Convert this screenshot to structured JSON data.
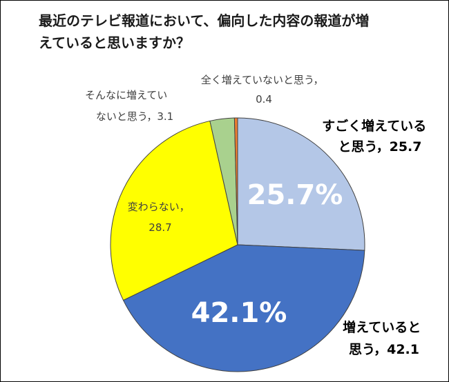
{
  "chart_data": {
    "type": "pie",
    "title_lines": [
      "最近のテレビ報道において、偏向した内容の報道が増",
      "えていると思いますか？"
    ],
    "slices": [
      {
        "label_lines": [
          "すごく増えている",
          "と思う，25.7"
        ],
        "value": 25.7,
        "color": "#b4c7e7",
        "inner_label": "25.7%"
      },
      {
        "label_lines": [
          "増えていると",
          "思う，42.1"
        ],
        "value": 42.1,
        "color": "#4472c4",
        "inner_label": "42.1%"
      },
      {
        "label_lines": [
          "変わらない，",
          "28.7"
        ],
        "value": 28.7,
        "color": "#ffff00",
        "inner_label": ""
      },
      {
        "label_lines": [
          "そんなに増えてい",
          "ないと思う，3.1"
        ],
        "value": 3.1,
        "color": "#a9d18e",
        "inner_label": ""
      },
      {
        "label_lines": [
          "全く増えていないと思う，",
          "0.4"
        ],
        "value": 0.4,
        "color": "#ed7d31",
        "inner_label": ""
      }
    ]
  }
}
